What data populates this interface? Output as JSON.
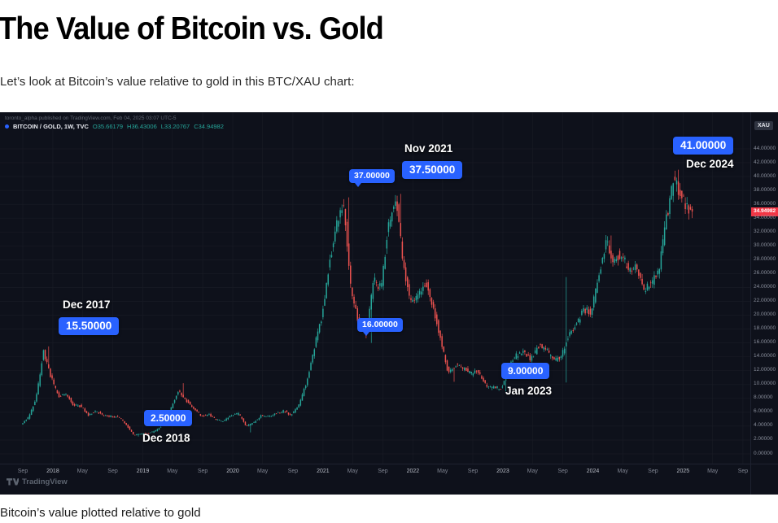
{
  "page": {
    "title": "The Value of Bitcoin vs. Gold",
    "intro": "Let’s look at Bitcoin’s value relative to gold in this BTC/XAU chart:",
    "caption": "Bitcoin’s value plotted relative to gold"
  },
  "chart": {
    "publisher_note": "toronto_alpha published on TradingView.com, Feb 04, 2025 03:07 UTC-5",
    "legend": {
      "symbol": "BITCOIN / GOLD, 1W, TVC",
      "ohlc": [
        "O35.66179",
        "H36.43006",
        "L33.20767",
        "C34.94982"
      ]
    },
    "axis_unit": "XAU",
    "last_price": "34.94982",
    "watermark": "TradingView",
    "colors": {
      "up": "#26a69a",
      "down": "#ef5350",
      "badge": "#2962ff",
      "background": "#0e111b",
      "last_price_bg": "#f23645"
    }
  },
  "chart_data": {
    "type": "candlestick",
    "symbol": "BITCOIN / GOLD",
    "interval": "1W",
    "exchange": "TVC",
    "x_start": "2017-09",
    "x_end": "2025-02",
    "ylim": [
      0,
      44
    ],
    "y_tick_step": 2,
    "y_tick_format_decimals": 5,
    "anchors_monthly": [
      {
        "m": "2017-09",
        "v": 4.3
      },
      {
        "m": "2017-10",
        "v": 5.2
      },
      {
        "m": "2017-11",
        "v": 8.0
      },
      {
        "m": "2017-12",
        "v": 14.8
      },
      {
        "m": "2018-01",
        "v": 11.0
      },
      {
        "m": "2018-02",
        "v": 8.2
      },
      {
        "m": "2018-03",
        "v": 8.8
      },
      {
        "m": "2018-04",
        "v": 7.0
      },
      {
        "m": "2018-05",
        "v": 6.9
      },
      {
        "m": "2018-06",
        "v": 5.6
      },
      {
        "m": "2018-07",
        "v": 6.2
      },
      {
        "m": "2018-08",
        "v": 5.5
      },
      {
        "m": "2018-09",
        "v": 5.4
      },
      {
        "m": "2018-10",
        "v": 5.3
      },
      {
        "m": "2018-11",
        "v": 4.3
      },
      {
        "m": "2018-12",
        "v": 2.7
      },
      {
        "m": "2019-01",
        "v": 2.9
      },
      {
        "m": "2019-02",
        "v": 3.0
      },
      {
        "m": "2019-03",
        "v": 3.3
      },
      {
        "m": "2019-04",
        "v": 4.3
      },
      {
        "m": "2019-05",
        "v": 6.4
      },
      {
        "m": "2019-06",
        "v": 9.2
      },
      {
        "m": "2019-07",
        "v": 7.8
      },
      {
        "m": "2019-08",
        "v": 6.7
      },
      {
        "m": "2019-09",
        "v": 5.5
      },
      {
        "m": "2019-10",
        "v": 5.7
      },
      {
        "m": "2019-11",
        "v": 4.9
      },
      {
        "m": "2019-12",
        "v": 4.7
      },
      {
        "m": "2020-01",
        "v": 5.5
      },
      {
        "m": "2020-02",
        "v": 5.8
      },
      {
        "m": "2020-03",
        "v": 4.0
      },
      {
        "m": "2020-04",
        "v": 4.5
      },
      {
        "m": "2020-05",
        "v": 5.5
      },
      {
        "m": "2020-06",
        "v": 5.4
      },
      {
        "m": "2020-07",
        "v": 5.8
      },
      {
        "m": "2020-08",
        "v": 6.2
      },
      {
        "m": "2020-09",
        "v": 5.6
      },
      {
        "m": "2020-10",
        "v": 7.0
      },
      {
        "m": "2020-11",
        "v": 10.2
      },
      {
        "m": "2020-12",
        "v": 15.0
      },
      {
        "m": "2021-01",
        "v": 19.5
      },
      {
        "m": "2021-02",
        "v": 27.0
      },
      {
        "m": "2021-03",
        "v": 33.0
      },
      {
        "m": "2021-04",
        "v": 36.3
      },
      {
        "m": "2021-05",
        "v": 24.0
      },
      {
        "m": "2021-06",
        "v": 19.0
      },
      {
        "m": "2021-07",
        "v": 17.2
      },
      {
        "m": "2021-08",
        "v": 25.0
      },
      {
        "m": "2021-09",
        "v": 24.0
      },
      {
        "m": "2021-10",
        "v": 33.5
      },
      {
        "m": "2021-11",
        "v": 36.8
      },
      {
        "m": "2021-12",
        "v": 27.0
      },
      {
        "m": "2022-01",
        "v": 21.5
      },
      {
        "m": "2022-02",
        "v": 23.0
      },
      {
        "m": "2022-03",
        "v": 24.5
      },
      {
        "m": "2022-04",
        "v": 21.0
      },
      {
        "m": "2022-05",
        "v": 16.5
      },
      {
        "m": "2022-06",
        "v": 11.5
      },
      {
        "m": "2022-07",
        "v": 12.8
      },
      {
        "m": "2022-08",
        "v": 12.3
      },
      {
        "m": "2022-09",
        "v": 11.6
      },
      {
        "m": "2022-10",
        "v": 11.9
      },
      {
        "m": "2022-11",
        "v": 9.8
      },
      {
        "m": "2022-12",
        "v": 9.6
      },
      {
        "m": "2023-01",
        "v": 9.4
      },
      {
        "m": "2023-02",
        "v": 12.6
      },
      {
        "m": "2023-03",
        "v": 14.2
      },
      {
        "m": "2023-04",
        "v": 14.7
      },
      {
        "m": "2023-05",
        "v": 13.6
      },
      {
        "m": "2023-06",
        "v": 15.5
      },
      {
        "m": "2023-07",
        "v": 15.2
      },
      {
        "m": "2023-08",
        "v": 13.4
      },
      {
        "m": "2023-09",
        "v": 13.9
      },
      {
        "m": "2023-10",
        "v": 17.2
      },
      {
        "m": "2023-11",
        "v": 18.6
      },
      {
        "m": "2023-12",
        "v": 20.8
      },
      {
        "m": "2024-01",
        "v": 20.4
      },
      {
        "m": "2024-02",
        "v": 25.5
      },
      {
        "m": "2024-03",
        "v": 30.5
      },
      {
        "m": "2024-04",
        "v": 28.0
      },
      {
        "m": "2024-05",
        "v": 29.0
      },
      {
        "m": "2024-06",
        "v": 26.5
      },
      {
        "m": "2024-07",
        "v": 27.5
      },
      {
        "m": "2024-08",
        "v": 23.5
      },
      {
        "m": "2024-09",
        "v": 24.5
      },
      {
        "m": "2024-10",
        "v": 26.5
      },
      {
        "m": "2024-11",
        "v": 34.0
      },
      {
        "m": "2024-12",
        "v": 39.5
      },
      {
        "m": "2025-01",
        "v": 37.5
      },
      {
        "m": "2025-02",
        "v": 35.0
      }
    ],
    "key_wicks": [
      {
        "m": "2017-12",
        "high": 15.5
      },
      {
        "m": "2018-12",
        "low": 2.5
      },
      {
        "m": "2019-06",
        "high": 10.2
      },
      {
        "m": "2020-03",
        "low": 3.1
      },
      {
        "m": "2021-04",
        "high": 37.0
      },
      {
        "m": "2021-07",
        "low": 16.0
      },
      {
        "m": "2021-11",
        "high": 37.5
      },
      {
        "m": "2022-06",
        "low": 10.4
      },
      {
        "m": "2022-11",
        "low": 9.2
      },
      {
        "m": "2023-01",
        "low": 9.0
      },
      {
        "m": "2023-09",
        "high": 25.5,
        "low": 10.3
      },
      {
        "m": "2024-03",
        "high": 31.5
      },
      {
        "m": "2024-12",
        "high": 41.0
      }
    ],
    "annotations": [
      {
        "id": "dec-2017",
        "value_label": "15.50000",
        "date_label": "Dec 2017"
      },
      {
        "id": "dec-2018",
        "value_label": "2.50000",
        "date_label": "Dec 2018"
      },
      {
        "id": "apr-2021",
        "value_label": "37.00000",
        "date_label": ""
      },
      {
        "id": "nov-2021",
        "value_label": "37.50000",
        "date_label": "Nov 2021"
      },
      {
        "id": "jul-2021",
        "value_label": "16.00000",
        "date_label": ""
      },
      {
        "id": "jan-2023",
        "value_label": "9.00000",
        "date_label": "Jan 2023"
      },
      {
        "id": "dec-2024",
        "value_label": "41.00000",
        "date_label": "Dec 2024"
      }
    ],
    "x_ticks": [
      {
        "label": "Sep",
        "m": "2017-09"
      },
      {
        "label": "2018",
        "m": "2018-01",
        "year": true
      },
      {
        "label": "May",
        "m": "2018-05"
      },
      {
        "label": "Sep",
        "m": "2018-09"
      },
      {
        "label": "2019",
        "m": "2019-01",
        "year": true
      },
      {
        "label": "May",
        "m": "2019-05"
      },
      {
        "label": "Sep",
        "m": "2019-09"
      },
      {
        "label": "2020",
        "m": "2020-01",
        "year": true
      },
      {
        "label": "May",
        "m": "2020-05"
      },
      {
        "label": "Sep",
        "m": "2020-09"
      },
      {
        "label": "2021",
        "m": "2021-01",
        "year": true
      },
      {
        "label": "May",
        "m": "2021-05"
      },
      {
        "label": "Sep",
        "m": "2021-09"
      },
      {
        "label": "2022",
        "m": "2022-01",
        "year": true
      },
      {
        "label": "May",
        "m": "2022-05"
      },
      {
        "label": "Sep",
        "m": "2022-09"
      },
      {
        "label": "2023",
        "m": "2023-01",
        "year": true
      },
      {
        "label": "May",
        "m": "2023-05"
      },
      {
        "label": "Sep",
        "m": "2023-09"
      },
      {
        "label": "2024",
        "m": "2024-01",
        "year": true
      },
      {
        "label": "May",
        "m": "2024-05"
      },
      {
        "label": "Sep",
        "m": "2024-09"
      },
      {
        "label": "2025",
        "m": "2025-01",
        "year": true
      },
      {
        "label": "May",
        "m": "2025-05"
      },
      {
        "label": "Sep",
        "m": "2025-09"
      }
    ]
  }
}
